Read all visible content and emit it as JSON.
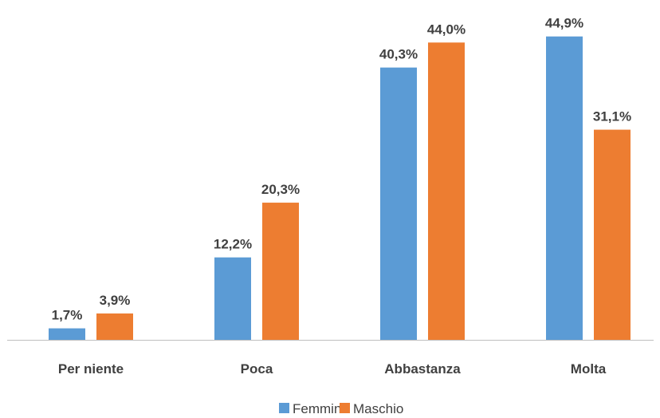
{
  "chart_data": {
    "type": "bar",
    "categories": [
      "Per niente",
      "Poca",
      "Abbastanza",
      "Molta"
    ],
    "series": [
      {
        "name": "Femmina",
        "values": [
          1.7,
          12.2,
          40.3,
          44.9
        ],
        "labels": [
          "1,7%",
          "12,2%",
          "40,3%",
          "44,9%"
        ],
        "color": "#5B9BD5"
      },
      {
        "name": "Maschio",
        "values": [
          3.9,
          20.3,
          44.0,
          31.1
        ],
        "labels": [
          "3,9%",
          "20,3%",
          "44,0%",
          "31,1%"
        ],
        "color": "#ED7D31"
      }
    ],
    "ylim": [
      0,
      50
    ],
    "grid": false,
    "legend_position": "bottom",
    "axis_color": "#BFBFBF",
    "label_color": "#404040"
  }
}
